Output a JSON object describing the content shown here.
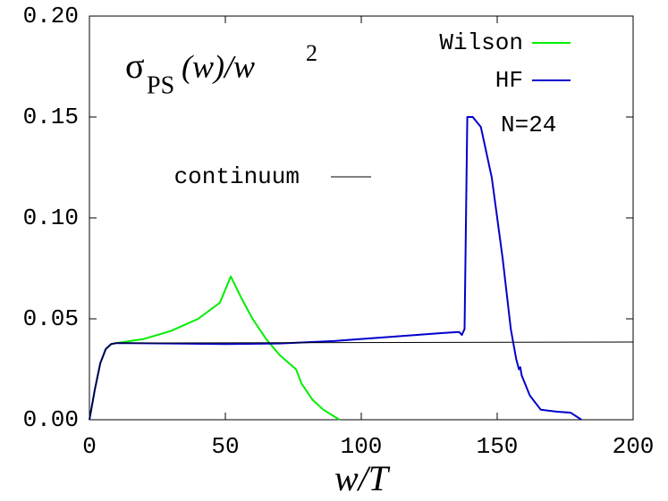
{
  "chart_data": {
    "type": "line",
    "title_parts": [
      "σ",
      "PS",
      "(w)/w",
      "2"
    ],
    "xlabel": "w/T",
    "annotation": "N=24",
    "xlim": [
      0,
      200
    ],
    "xticks": [
      0,
      50,
      100,
      150,
      200
    ],
    "ylim": [
      0,
      0.2
    ],
    "yticks": [
      {
        "value": 0,
        "label": "0.00"
      },
      {
        "value": 0.05,
        "label": "0.05"
      },
      {
        "value": 0.1,
        "label": "0.10"
      },
      {
        "value": 0.15,
        "label": "0.15"
      },
      {
        "value": 0.2,
        "label": "0.20"
      }
    ],
    "series": [
      {
        "name": "Wilson",
        "color": "#00ee00",
        "x": [
          0,
          2,
          4,
          6,
          8,
          10,
          20,
          30,
          40,
          48,
          52,
          56,
          60,
          65,
          70,
          76,
          78,
          82,
          86,
          92
        ],
        "values": [
          0,
          0.015,
          0.028,
          0.035,
          0.0375,
          0.038,
          0.04,
          0.044,
          0.05,
          0.058,
          0.071,
          0.06,
          0.05,
          0.04,
          0.032,
          0.025,
          0.018,
          0.01,
          0.005,
          0
        ]
      },
      {
        "name": "HF",
        "color": "#0000cc",
        "x": [
          0,
          2,
          4,
          6,
          8,
          10,
          30,
          50,
          70,
          90,
          110,
          130,
          136,
          137,
          138,
          139,
          141,
          144,
          148,
          152,
          155,
          157,
          158,
          158.5,
          159,
          162,
          166,
          172,
          177,
          181
        ],
        "values": [
          0,
          0.015,
          0.028,
          0.035,
          0.0375,
          0.038,
          0.0378,
          0.0375,
          0.0378,
          0.039,
          0.041,
          0.043,
          0.0435,
          0.042,
          0.045,
          0.15,
          0.15,
          0.145,
          0.12,
          0.08,
          0.045,
          0.03,
          0.025,
          0.026,
          0.022,
          0.012,
          0.005,
          0.004,
          0.0035,
          0
        ]
      },
      {
        "name": "continuum",
        "color": "#000000",
        "x": [
          0,
          2,
          4,
          6,
          8,
          10,
          200
        ],
        "values": [
          0,
          0.015,
          0.028,
          0.035,
          0.0375,
          0.038,
          0.0385
        ]
      }
    ]
  }
}
